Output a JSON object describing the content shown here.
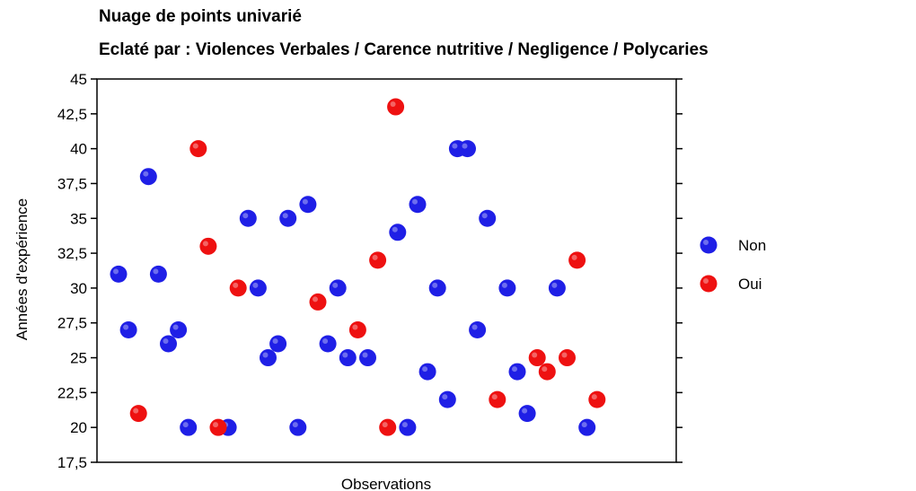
{
  "chart_data": {
    "type": "scatter",
    "title": "Nuage de points univarié",
    "subtitle": "Eclaté par : Violences Verbales / Carence nutritive / Negligence / Polycaries",
    "xlabel": "Observations",
    "ylabel": "Années d'expérience",
    "ylim": [
      17.5,
      45
    ],
    "yticks": [
      "17,5",
      "20",
      "22,5",
      "25",
      "27,5",
      "30",
      "32,5",
      "35",
      "37,5",
      "40",
      "42,5",
      "45"
    ],
    "legend_position": "right",
    "grid": false,
    "series": [
      {
        "name": "Non",
        "color": "#1f1fe6",
        "points": [
          [
            1,
            31
          ],
          [
            2,
            27
          ],
          [
            4,
            38
          ],
          [
            5,
            31
          ],
          [
            6,
            26
          ],
          [
            7,
            27
          ],
          [
            8,
            20
          ],
          [
            12,
            20
          ],
          [
            14,
            35
          ],
          [
            15,
            30
          ],
          [
            16,
            25
          ],
          [
            17,
            26
          ],
          [
            18,
            35
          ],
          [
            19,
            20
          ],
          [
            20,
            36
          ],
          [
            22,
            26
          ],
          [
            23,
            30
          ],
          [
            24,
            25
          ],
          [
            26,
            25
          ],
          [
            29,
            34
          ],
          [
            30,
            20
          ],
          [
            31,
            36
          ],
          [
            32,
            24
          ],
          [
            33,
            30
          ],
          [
            34,
            22
          ],
          [
            35,
            40
          ],
          [
            36,
            40
          ],
          [
            37,
            27
          ],
          [
            38,
            35
          ],
          [
            40,
            30
          ],
          [
            41,
            24
          ],
          [
            42,
            21
          ],
          [
            45,
            30
          ],
          [
            48,
            20
          ]
        ]
      },
      {
        "name": "Oui",
        "color": "#ee1111",
        "points": [
          [
            3,
            21
          ],
          [
            9,
            40
          ],
          [
            10,
            33
          ],
          [
            11,
            20
          ],
          [
            13,
            30
          ],
          [
            21,
            29
          ],
          [
            25,
            27
          ],
          [
            27,
            32
          ],
          [
            28,
            20
          ],
          [
            28.8,
            43
          ],
          [
            39,
            22
          ],
          [
            43,
            25
          ],
          [
            44,
            24
          ],
          [
            46,
            25
          ],
          [
            47,
            32
          ],
          [
            49,
            22
          ]
        ]
      }
    ]
  }
}
